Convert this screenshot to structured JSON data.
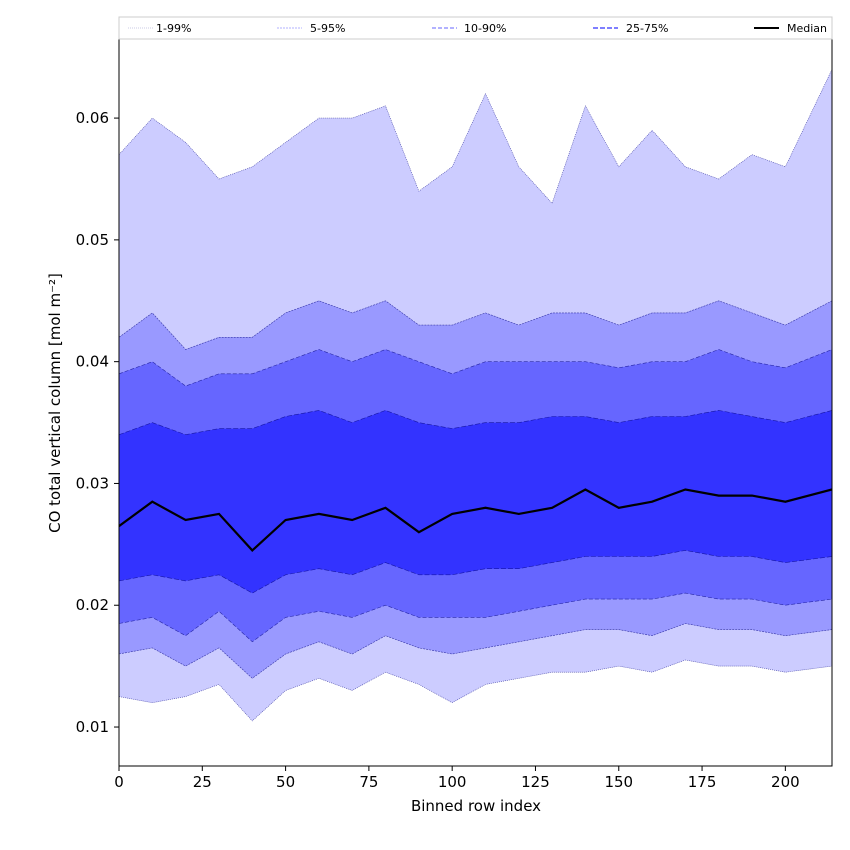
{
  "chart_data": {
    "type": "area",
    "xlabel": "Binned row index",
    "ylabel": "CO total vertical column [mol m⁻²]",
    "xlim": [
      0,
      214
    ],
    "ylim": [
      0.0068,
      0.0683
    ],
    "xticks": [
      0,
      25,
      50,
      75,
      100,
      125,
      150,
      175,
      200
    ],
    "yticks": [
      0.01,
      0.02,
      0.03,
      0.04,
      0.05,
      0.06
    ],
    "ytick_labels": [
      "0.01",
      "0.02",
      "0.03",
      "0.04",
      "0.05",
      "0.06"
    ],
    "legend_position": "top (above plot, horizontal)",
    "x": [
      0,
      10,
      20,
      30,
      40,
      50,
      60,
      70,
      80,
      90,
      100,
      110,
      120,
      130,
      140,
      150,
      160,
      170,
      180,
      190,
      200,
      214
    ],
    "bands": [
      {
        "name": "1-99%",
        "color": "#ccccff",
        "lower": [
          0.0125,
          0.012,
          0.0125,
          0.0135,
          0.0105,
          0.013,
          0.014,
          0.013,
          0.0145,
          0.0135,
          0.012,
          0.0135,
          0.014,
          0.0145,
          0.0145,
          0.015,
          0.0145,
          0.0155,
          0.015,
          0.015,
          0.0145,
          0.015
        ],
        "upper": [
          0.057,
          0.06,
          0.058,
          0.055,
          0.056,
          0.058,
          0.06,
          0.06,
          0.061,
          0.054,
          0.056,
          0.062,
          0.056,
          0.053,
          0.061,
          0.056,
          0.059,
          0.056,
          0.055,
          0.057,
          0.056,
          0.064
        ]
      },
      {
        "name": "5-95%",
        "color": "#9999ff",
        "lower": [
          0.016,
          0.0165,
          0.015,
          0.0165,
          0.014,
          0.016,
          0.017,
          0.016,
          0.0175,
          0.0165,
          0.016,
          0.0165,
          0.017,
          0.0175,
          0.018,
          0.018,
          0.0175,
          0.0185,
          0.018,
          0.018,
          0.0175,
          0.018
        ],
        "upper": [
          0.042,
          0.044,
          0.041,
          0.042,
          0.042,
          0.044,
          0.045,
          0.044,
          0.045,
          0.043,
          0.043,
          0.044,
          0.043,
          0.044,
          0.044,
          0.043,
          0.044,
          0.044,
          0.045,
          0.044,
          0.043,
          0.045
        ]
      },
      {
        "name": "10-90%",
        "color": "#6666ff",
        "lower": [
          0.0185,
          0.019,
          0.0175,
          0.0195,
          0.017,
          0.019,
          0.0195,
          0.019,
          0.02,
          0.019,
          0.019,
          0.019,
          0.0195,
          0.02,
          0.0205,
          0.0205,
          0.0205,
          0.021,
          0.0205,
          0.0205,
          0.02,
          0.0205
        ],
        "upper": [
          0.039,
          0.04,
          0.038,
          0.039,
          0.039,
          0.04,
          0.041,
          0.04,
          0.041,
          0.04,
          0.039,
          0.04,
          0.04,
          0.04,
          0.04,
          0.0395,
          0.04,
          0.04,
          0.041,
          0.04,
          0.0395,
          0.041
        ]
      },
      {
        "name": "25-75%",
        "color": "#3333ff",
        "lower": [
          0.022,
          0.0225,
          0.022,
          0.0225,
          0.021,
          0.0225,
          0.023,
          0.0225,
          0.0235,
          0.0225,
          0.0225,
          0.023,
          0.023,
          0.0235,
          0.024,
          0.024,
          0.024,
          0.0245,
          0.024,
          0.024,
          0.0235,
          0.024
        ],
        "upper": [
          0.034,
          0.035,
          0.034,
          0.0345,
          0.0345,
          0.0355,
          0.036,
          0.035,
          0.036,
          0.035,
          0.0345,
          0.035,
          0.035,
          0.0355,
          0.0355,
          0.035,
          0.0355,
          0.0355,
          0.036,
          0.0355,
          0.035,
          0.036
        ]
      }
    ],
    "median": {
      "name": "Median",
      "color": "#000000",
      "values": [
        0.0265,
        0.0285,
        0.027,
        0.0275,
        0.0245,
        0.027,
        0.0275,
        0.027,
        0.028,
        0.026,
        0.0275,
        0.028,
        0.0275,
        0.028,
        0.0295,
        0.028,
        0.0285,
        0.0295,
        0.029,
        0.029,
        0.0285,
        0.0295
      ]
    },
    "legend": [
      {
        "label": "1-99%",
        "color": "#ccccff",
        "dash": "1,1",
        "width": 0.8
      },
      {
        "label": "5-95%",
        "color": "#9999ff",
        "dash": "2,1",
        "width": 0.8
      },
      {
        "label": "10-90%",
        "color": "#6666ff",
        "dash": "4,2",
        "width": 1
      },
      {
        "label": "25-75%",
        "color": "#3333ff",
        "dash": "5,2",
        "width": 1.2
      },
      {
        "label": "Median",
        "color": "#000000",
        "dash": "",
        "width": 2
      }
    ]
  }
}
